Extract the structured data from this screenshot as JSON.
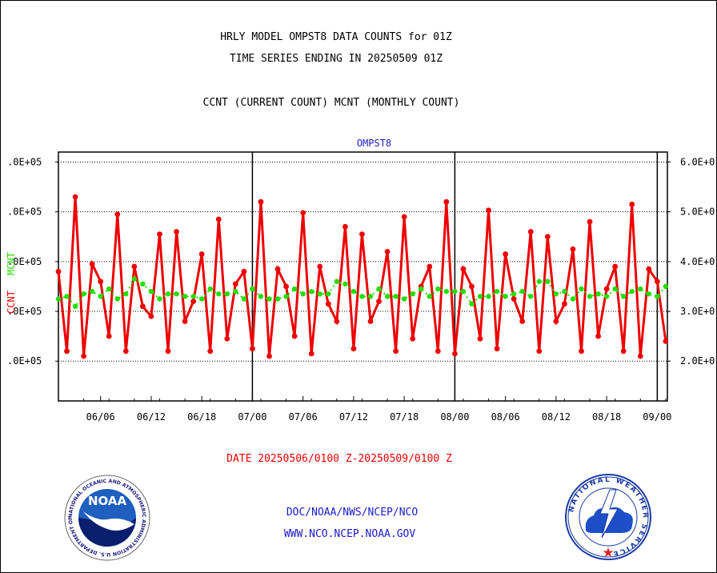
{
  "header": {
    "title_line1": "HRLY MODEL OMPST8 DATA COUNTS for 01Z",
    "title_line2": "TIME SERIES ENDING IN 20250509 01Z",
    "subtitle": "CCNT (CURRENT COUNT) MCNT (MONTHLY COUNT)"
  },
  "footer": {
    "date_range": "DATE 20250506/0100 Z-20250509/0100 Z",
    "org_path": "DOC/NOAA/NWS/NCEP/NCO",
    "website": "WWW.NCO.NCEP.NOAA.GOV"
  },
  "logos": {
    "left": {
      "label": "NOAA",
      "ring_text": "NATIONAL OCEANIC AND ATMOSPHERIC ADMINISTRATION U.S. DEPARTMENT OF COMMERCE"
    },
    "right": {
      "ring_text": "NATIONAL WEATHER SERVICE"
    }
  },
  "colors": {
    "ccnt": "#ee0000",
    "mcnt": "#22dd00",
    "panel_label": "#1a1acc",
    "grid": "#000000"
  },
  "chart_data": {
    "type": "line",
    "panel_title": "OMPST8",
    "left_axis_label_ccnt": "CCNT",
    "left_axis_label_mcnt": "MCNT",
    "left_ticks": [
      ".0E+05",
      ".0E+05",
      ".0E+05",
      ".0E+05",
      ".0E+05"
    ],
    "right_ticks": [
      "6.0E+0",
      "5.0E+0",
      "4.0E+0",
      "3.0E+0",
      "2.0E+0"
    ],
    "ylim": [
      1.2,
      6.2
    ],
    "y_tick_values": [
      6.0,
      5.0,
      4.0,
      3.0,
      2.0
    ],
    "x_tick_labels": [
      "06/06",
      "06/12",
      "06/18",
      "07/00",
      "07/06",
      "07/12",
      "07/18",
      "08/00",
      "08/06",
      "08/12",
      "08/18",
      "09/00"
    ],
    "x_tick_hours": [
      5,
      11,
      17,
      23,
      29,
      35,
      41,
      47,
      53,
      59,
      65,
      71
    ],
    "day_boundary_hours": [
      23,
      47,
      71
    ],
    "xlim": [
      0,
      72.2
    ],
    "series": [
      {
        "name": "CCNT",
        "values": [
          3.8,
          2.2,
          5.3,
          2.1,
          3.95,
          3.6,
          2.5,
          4.95,
          2.2,
          3.9,
          3.1,
          2.9,
          4.55,
          2.2,
          4.6,
          2.8,
          3.2,
          4.15,
          2.2,
          4.85,
          2.45,
          3.55,
          3.8,
          2.25,
          5.2,
          2.1,
          3.85,
          3.5,
          2.5,
          4.98,
          2.15,
          3.9,
          3.15,
          2.8,
          4.7,
          2.25,
          4.55,
          2.8,
          3.2,
          4.2,
          2.2,
          4.9,
          2.45,
          3.5,
          3.9,
          2.2,
          5.2,
          2.15,
          3.85,
          3.5,
          2.45,
          5.03,
          2.25,
          4.15,
          3.25,
          2.8,
          4.6,
          2.2,
          4.5,
          2.8,
          3.15,
          4.25,
          2.2,
          4.8,
          2.5,
          3.45,
          3.9,
          2.2,
          5.15,
          2.1,
          3.85,
          3.6,
          2.4
        ]
      },
      {
        "name": "MCNT",
        "values": [
          3.25,
          3.3,
          3.1,
          3.35,
          3.4,
          3.3,
          3.45,
          3.25,
          3.35,
          3.65,
          3.55,
          3.4,
          3.25,
          3.35,
          3.35,
          3.3,
          3.3,
          3.25,
          3.45,
          3.35,
          3.35,
          3.4,
          3.25,
          3.45,
          3.3,
          3.25,
          3.25,
          3.3,
          3.45,
          3.35,
          3.4,
          3.35,
          3.35,
          3.6,
          3.55,
          3.4,
          3.3,
          3.3,
          3.45,
          3.3,
          3.3,
          3.25,
          3.35,
          3.45,
          3.3,
          3.45,
          3.4,
          3.4,
          3.4,
          3.15,
          3.3,
          3.3,
          3.4,
          3.3,
          3.35,
          3.4,
          3.3,
          3.6,
          3.6,
          3.35,
          3.4,
          3.25,
          3.45,
          3.3,
          3.35,
          3.3,
          3.45,
          3.3,
          3.4,
          3.45,
          3.35,
          3.3,
          3.5
        ]
      }
    ]
  }
}
